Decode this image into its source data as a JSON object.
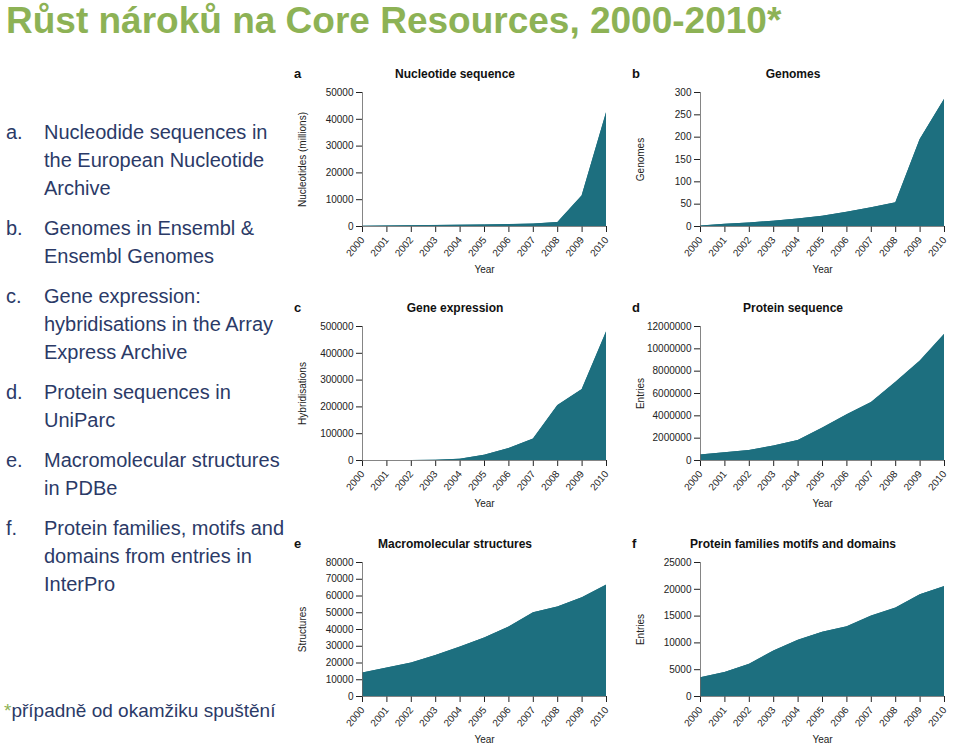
{
  "title": "Růst nároků na Core Resources, 2000-2010*",
  "items": [
    {
      "letter": "a.",
      "text": "Nucleodide sequences in the European Nucleotide Archive"
    },
    {
      "letter": "b.",
      "text": "Genomes in Ensembl & Ensembl Genomes"
    },
    {
      "letter": "c.",
      "text": "Gene expression: hybridisations in the Array Express Archive"
    },
    {
      "letter": "d.",
      "text": "Protein sequences in UniParc"
    },
    {
      "letter": "e.",
      "text": "Macromolecular structures in PDBe"
    },
    {
      "letter": "f.",
      "text": "Protein families, motifs and domains from entries in InterPro"
    }
  ],
  "footnote": {
    "mark": "*",
    "text": "případně od okamžiku spuštění"
  },
  "chart_data": [
    {
      "type": "area",
      "panel": "a",
      "title": "Nucleotide sequence",
      "xlabel": "Year",
      "ylabel": "Nucleotides (millions)",
      "color": "#1d6f7f",
      "x": [
        2000,
        2001,
        2002,
        2003,
        2004,
        2005,
        2006,
        2007,
        2008,
        2009,
        2010
      ],
      "values": [
        100,
        200,
        300,
        400,
        500,
        600,
        700,
        900,
        1500,
        11500,
        42500
      ],
      "xlim": [
        2000,
        2010
      ],
      "xticks": [
        2000,
        2001,
        2002,
        2003,
        2004,
        2005,
        2006,
        2007,
        2008,
        2009,
        2010
      ],
      "ylim": [
        0,
        50000
      ],
      "yticks": [
        0,
        10000,
        20000,
        30000,
        40000,
        50000
      ]
    },
    {
      "type": "area",
      "panel": "b",
      "title": "Genomes",
      "xlabel": "Year",
      "ylabel": "Genomes",
      "color": "#1d6f7f",
      "x": [
        2000,
        2001,
        2002,
        2003,
        2004,
        2005,
        2006,
        2007,
        2008,
        2009,
        2010
      ],
      "values": [
        1,
        5,
        8,
        12,
        17,
        23,
        32,
        42,
        53,
        195,
        285
      ],
      "xlim": [
        2000,
        2010
      ],
      "xticks": [
        2000,
        2001,
        2002,
        2003,
        2004,
        2005,
        2006,
        2007,
        2008,
        2009,
        2010
      ],
      "ylim": [
        0,
        300
      ],
      "yticks": [
        0,
        50,
        100,
        150,
        200,
        250,
        300
      ]
    },
    {
      "type": "area",
      "panel": "c",
      "title": "Gene expression",
      "xlabel": "Year",
      "ylabel": "Hybridisations",
      "color": "#1d6f7f",
      "x": [
        2000,
        2001,
        2002,
        2003,
        2004,
        2005,
        2006,
        2007,
        2008,
        2009,
        2010
      ],
      "values": [
        0,
        0,
        0,
        1000,
        5000,
        20000,
        45000,
        80000,
        205000,
        265000,
        480000
      ],
      "xlim": [
        2000,
        2010
      ],
      "xticks": [
        2000,
        2001,
        2002,
        2003,
        2004,
        2005,
        2006,
        2007,
        2008,
        2009,
        2010
      ],
      "ylim": [
        0,
        500000
      ],
      "yticks": [
        0,
        100000,
        200000,
        300000,
        400000,
        500000
      ]
    },
    {
      "type": "area",
      "panel": "d",
      "title": "Protein sequence",
      "xlabel": "Year",
      "ylabel": "Entries",
      "color": "#1d6f7f",
      "x": [
        2000,
        2001,
        2002,
        2003,
        2004,
        2005,
        2006,
        2007,
        2008,
        2009,
        2010
      ],
      "values": [
        500000,
        700000,
        900000,
        1300000,
        1800000,
        2900000,
        4100000,
        5200000,
        7000000,
        8900000,
        11300000
      ],
      "xlim": [
        2000,
        2010
      ],
      "xticks": [
        2000,
        2001,
        2002,
        2003,
        2004,
        2005,
        2006,
        2007,
        2008,
        2009,
        2010
      ],
      "ylim": [
        0,
        12000000
      ],
      "yticks": [
        0,
        2000000,
        4000000,
        6000000,
        8000000,
        10000000,
        12000000
      ]
    },
    {
      "type": "area",
      "panel": "e",
      "title": "Macromolecular structures",
      "xlabel": "Year",
      "ylabel": "Structures",
      "color": "#1d6f7f",
      "x": [
        2000,
        2001,
        2002,
        2003,
        2004,
        2005,
        2006,
        2007,
        2008,
        2009,
        2010
      ],
      "values": [
        14000,
        17000,
        20000,
        24500,
        29500,
        35000,
        41500,
        50000,
        53500,
        59000,
        66500
      ],
      "xlim": [
        2000,
        2010
      ],
      "xticks": [
        2000,
        2001,
        2002,
        2003,
        2004,
        2005,
        2006,
        2007,
        2008,
        2009,
        2010
      ],
      "ylim": [
        0,
        80000
      ],
      "yticks": [
        0,
        10000,
        20000,
        30000,
        40000,
        50000,
        60000,
        70000,
        80000
      ]
    },
    {
      "type": "area",
      "panel": "f",
      "title": "Protein families motifs and domains",
      "xlabel": "Year",
      "ylabel": "Entries",
      "color": "#1d6f7f",
      "x": [
        2000,
        2001,
        2002,
        2003,
        2004,
        2005,
        2006,
        2007,
        2008,
        2009,
        2010
      ],
      "values": [
        3500,
        4500,
        6000,
        8500,
        10500,
        12000,
        13000,
        15000,
        16500,
        19000,
        20500
      ],
      "xlim": [
        2000,
        2010
      ],
      "xticks": [
        2000,
        2001,
        2002,
        2003,
        2004,
        2005,
        2006,
        2007,
        2008,
        2009,
        2010
      ],
      "ylim": [
        0,
        25000
      ],
      "yticks": [
        0,
        5000,
        10000,
        15000,
        20000,
        25000
      ]
    }
  ]
}
